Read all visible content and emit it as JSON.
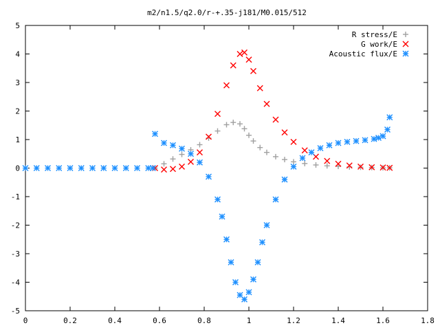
{
  "chart_data": {
    "type": "scatter",
    "title": "m2/n1.5/q2.0/r-+.35-j181/M0.015/512",
    "xlabel": "",
    "ylabel": "",
    "xlim": [
      0,
      1.8
    ],
    "ylim": [
      -5,
      5
    ],
    "xticks": [
      "0",
      "0.2",
      "0.4",
      "0.6",
      "0.8",
      "1",
      "1.2",
      "1.4",
      "1.6",
      "1.8"
    ],
    "yticks": [
      "-5",
      "-4",
      "-3",
      "-2",
      "-1",
      "0",
      "1",
      "2",
      "3",
      "4",
      "5"
    ],
    "grid": false,
    "legend_position": "top-right",
    "series": [
      {
        "name": "R stress/E",
        "marker": "plus",
        "color": "#a0a0a0",
        "x": [
          0.58,
          0.62,
          0.66,
          0.7,
          0.74,
          0.78,
          0.82,
          0.86,
          0.9,
          0.93,
          0.96,
          0.98,
          1.0,
          1.02,
          1.05,
          1.08,
          1.12,
          1.16,
          1.2,
          1.25,
          1.3,
          1.35,
          1.4,
          1.45,
          1.5,
          1.55,
          1.6,
          1.63
        ],
        "y": [
          0.0,
          0.15,
          0.32,
          0.48,
          0.64,
          0.82,
          1.05,
          1.3,
          1.52,
          1.6,
          1.55,
          1.38,
          1.15,
          0.95,
          0.72,
          0.55,
          0.4,
          0.3,
          0.22,
          0.16,
          0.11,
          0.08,
          0.06,
          0.04,
          0.03,
          0.02,
          0.01,
          0.01
        ]
      },
      {
        "name": "G work/E",
        "marker": "cross",
        "color": "#ff0000",
        "x": [
          0.58,
          0.62,
          0.66,
          0.7,
          0.74,
          0.78,
          0.82,
          0.86,
          0.9,
          0.93,
          0.96,
          0.98,
          1.0,
          1.02,
          1.05,
          1.08,
          1.12,
          1.16,
          1.2,
          1.25,
          1.3,
          1.35,
          1.4,
          1.45,
          1.5,
          1.55,
          1.6,
          1.63
        ],
        "y": [
          0.0,
          -0.05,
          -0.03,
          0.05,
          0.22,
          0.55,
          1.1,
          1.9,
          2.9,
          3.6,
          4.0,
          4.05,
          3.8,
          3.4,
          2.8,
          2.25,
          1.7,
          1.25,
          0.92,
          0.62,
          0.4,
          0.25,
          0.15,
          0.09,
          0.05,
          0.03,
          0.02,
          0.01
        ]
      },
      {
        "name": "Acoustic flux/E",
        "marker": "star",
        "color": "#1e90ff",
        "x": [
          0.0,
          0.05,
          0.1,
          0.15,
          0.2,
          0.25,
          0.3,
          0.35,
          0.4,
          0.45,
          0.5,
          0.55,
          0.57,
          0.58,
          0.62,
          0.66,
          0.7,
          0.74,
          0.78,
          0.82,
          0.86,
          0.88,
          0.9,
          0.92,
          0.94,
          0.96,
          0.98,
          1.0,
          1.02,
          1.04,
          1.06,
          1.08,
          1.12,
          1.16,
          1.2,
          1.24,
          1.28,
          1.32,
          1.36,
          1.4,
          1.44,
          1.48,
          1.52,
          1.56,
          1.58,
          1.6,
          1.62,
          1.63
        ],
        "y": [
          0.0,
          0.0,
          0.0,
          0.0,
          0.0,
          0.0,
          0.0,
          0.0,
          0.0,
          0.0,
          0.0,
          0.0,
          0.0,
          1.2,
          0.88,
          0.8,
          0.68,
          0.5,
          0.2,
          -0.3,
          -1.1,
          -1.7,
          -2.5,
          -3.3,
          -4.0,
          -4.45,
          -4.6,
          -4.35,
          -3.9,
          -3.3,
          -2.6,
          -2.0,
          -1.1,
          -0.4,
          0.05,
          0.35,
          0.55,
          0.7,
          0.8,
          0.88,
          0.92,
          0.95,
          0.98,
          1.02,
          1.06,
          1.12,
          1.35,
          1.78
        ]
      }
    ]
  }
}
